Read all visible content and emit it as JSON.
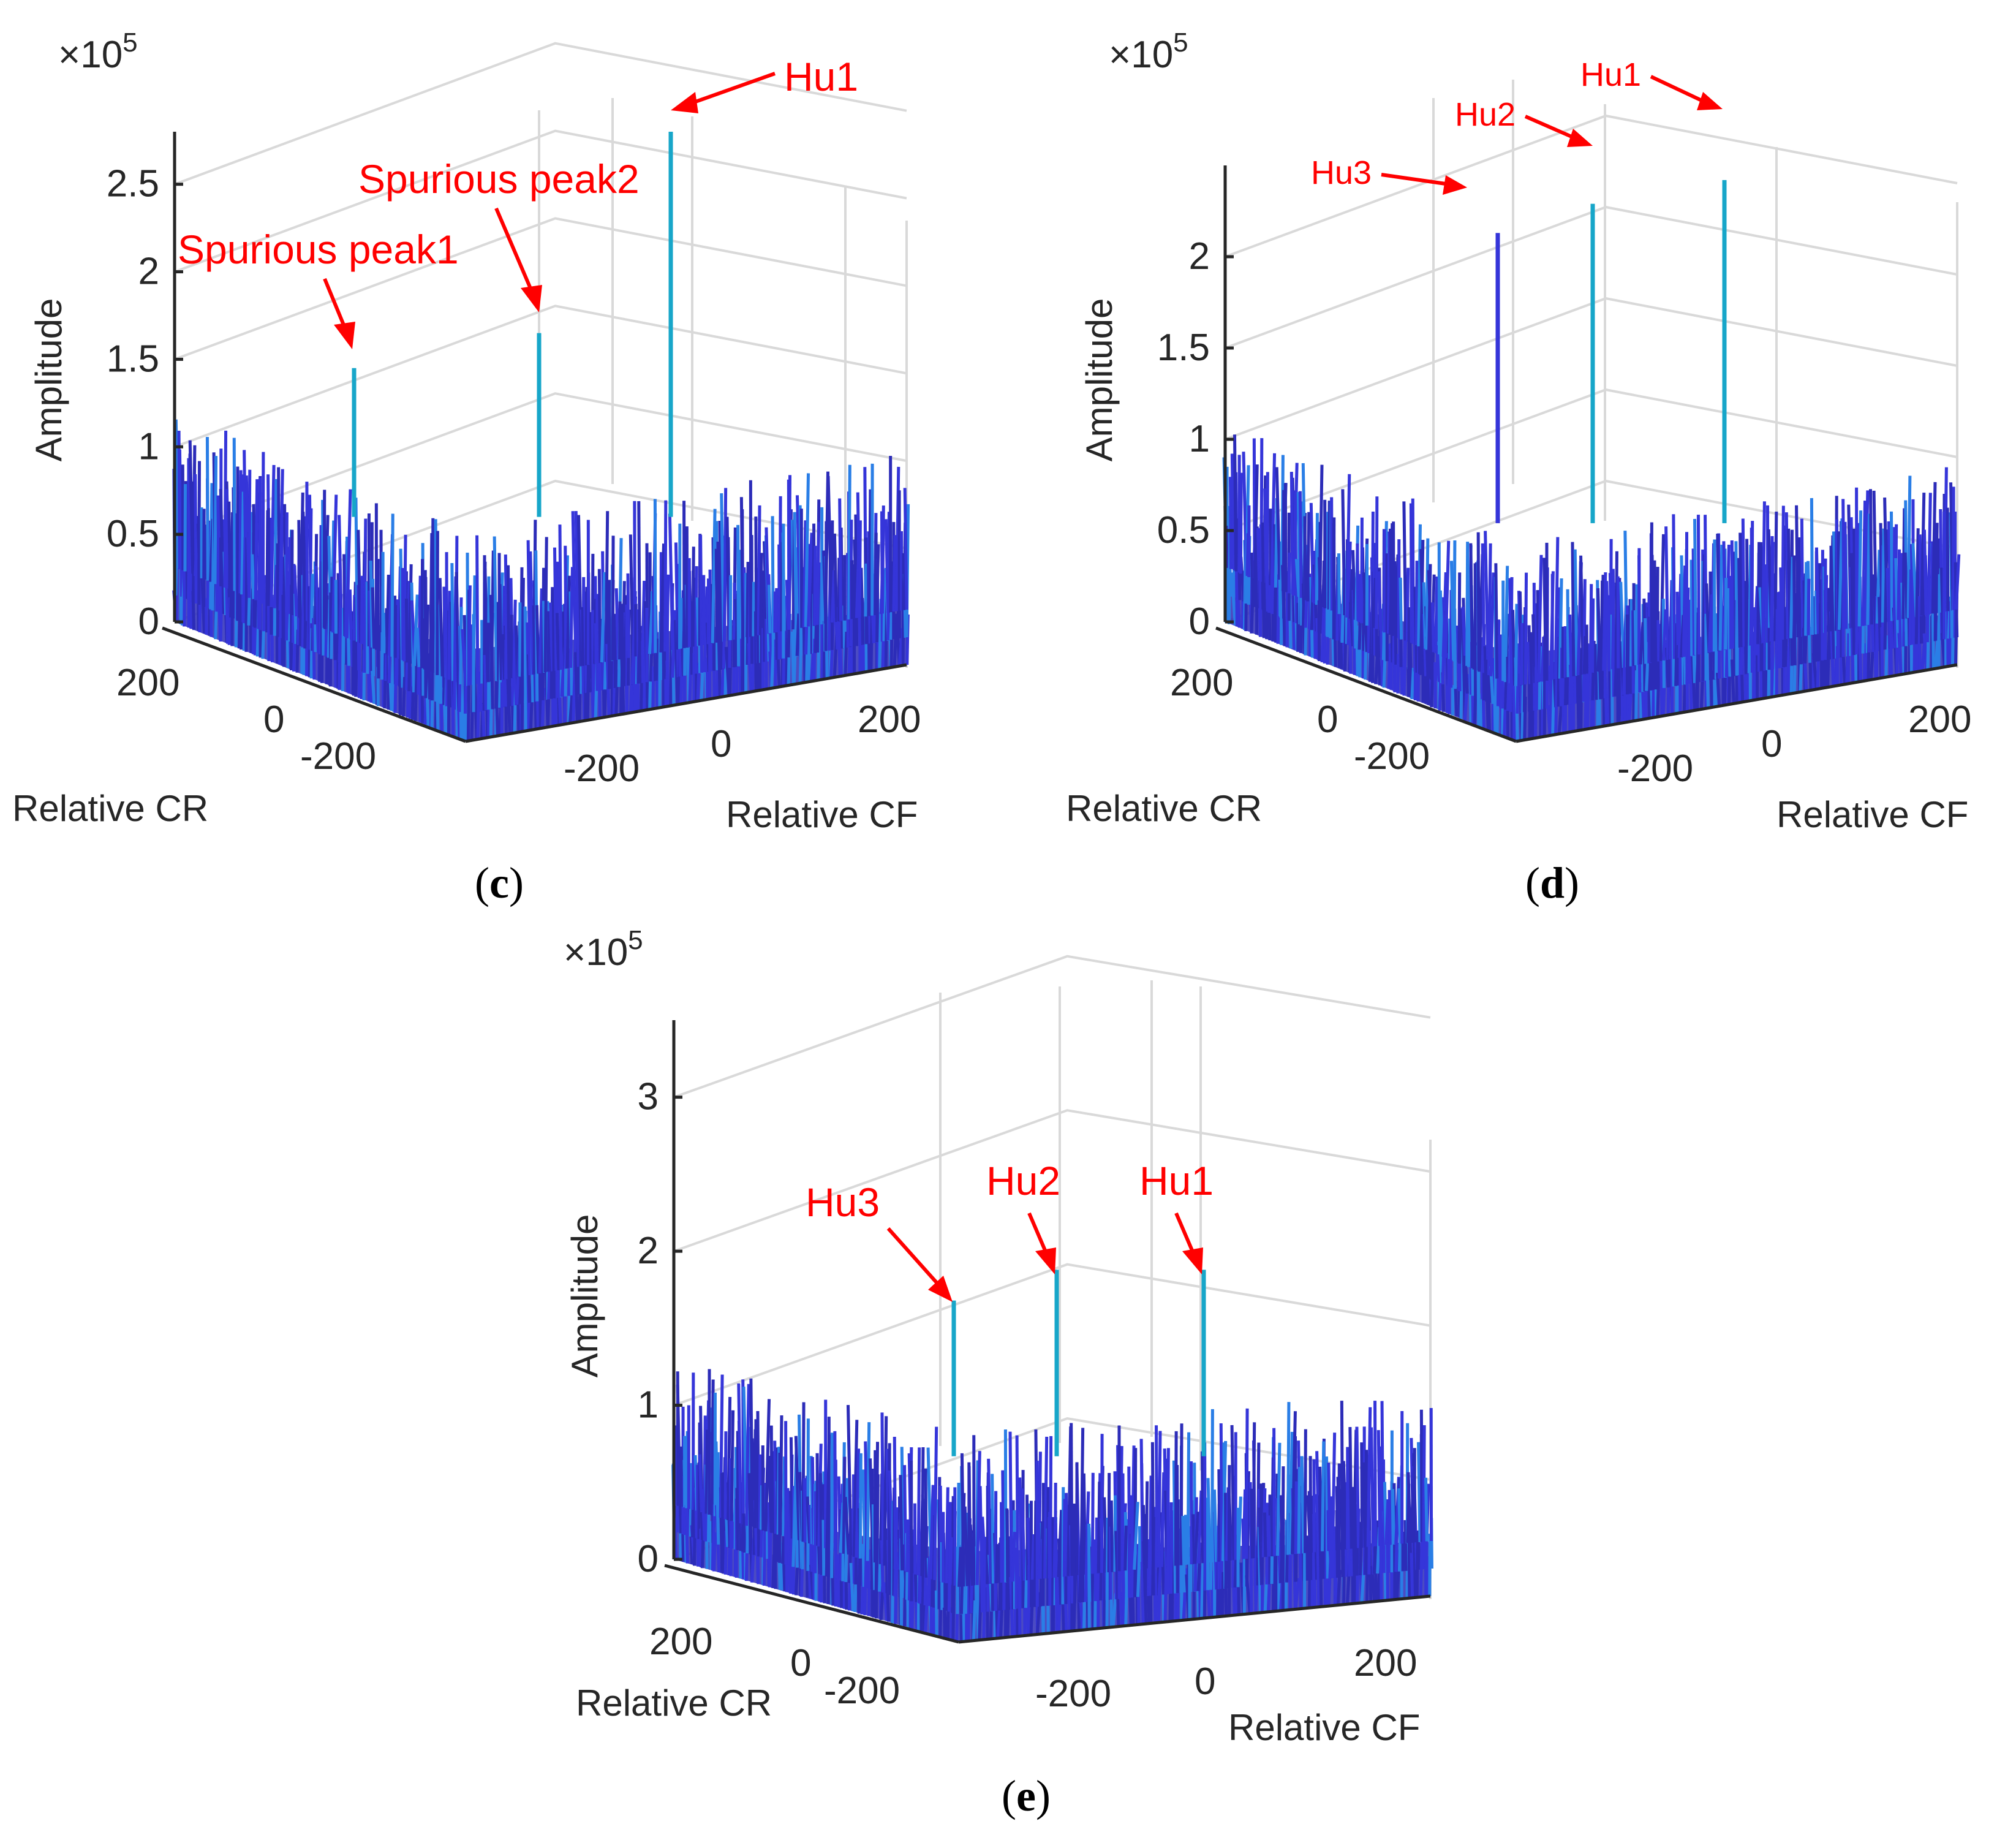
{
  "colors": {
    "noise_dark": "#2c2cb8",
    "noise_mid": "#3535d9",
    "noise_light": "#2a7ee6",
    "peak_cyan": "#17a6c9",
    "annotation": "#ff0000",
    "grid": "#d9d9d9"
  },
  "chart_data": [
    {
      "type": "bar3d",
      "panel": "c",
      "caption_letter": "c",
      "exponent_label": "×10",
      "exponent_power": "5",
      "zlabel": "Amplitude",
      "xlabel": "Relative CR",
      "ylabel": "Relative CF",
      "zlim": [
        0,
        2.8
      ],
      "zticks": [
        "0",
        "0.5",
        "1",
        "1.5",
        "2",
        "2.5"
      ],
      "zticks_values": [
        0,
        0.5,
        1,
        1.5,
        2,
        2.5
      ],
      "cr_ticks": [
        "200",
        "0",
        "-200"
      ],
      "cf_ticks": [
        "-200",
        "0",
        "200"
      ],
      "noise_level": 0.9,
      "peaks": [
        {
          "label": "Hu1",
          "value": 2.8
        },
        {
          "label": "Spurious peak2",
          "value": 1.65
        },
        {
          "label": "Spurious peak1",
          "value": 1.45
        }
      ]
    },
    {
      "type": "bar3d",
      "panel": "d",
      "caption_letter": "d",
      "exponent_label": "×10",
      "exponent_power": "5",
      "zlabel": "Amplitude",
      "xlabel": "Relative CR",
      "ylabel": "Relative CF",
      "zlim": [
        0,
        2.5
      ],
      "zticks": [
        "0",
        "0.5",
        "1",
        "1.5",
        "2"
      ],
      "zticks_values": [
        0,
        0.5,
        1,
        1.5,
        2
      ],
      "cr_ticks": [
        "200",
        "0",
        "-200"
      ],
      "cf_ticks": [
        "-200",
        "0",
        "200"
      ],
      "noise_level": 0.8,
      "peaks": [
        {
          "label": "Hu1",
          "value": 2.42
        },
        {
          "label": "Hu2",
          "value": 2.29
        },
        {
          "label": "Hu3",
          "value": 2.13
        }
      ]
    },
    {
      "type": "bar3d",
      "panel": "e",
      "caption_letter": "e",
      "exponent_label": "×10",
      "exponent_power": "5",
      "zlabel": "Amplitude",
      "xlabel": "Relative CR",
      "ylabel": "Relative CF",
      "zlim": [
        0,
        3.5
      ],
      "zticks": [
        "0",
        "1",
        "2",
        "3"
      ],
      "zticks_values": [
        0,
        1,
        2,
        3
      ],
      "cr_ticks": [
        "200",
        "0",
        "-200"
      ],
      "cf_ticks": [
        "-200",
        "0",
        "200"
      ],
      "noise_level": 1.0,
      "peaks": [
        {
          "label": "Hu1",
          "value": 1.88
        },
        {
          "label": "Hu2",
          "value": 1.88
        },
        {
          "label": "Hu3",
          "value": 1.68
        }
      ]
    }
  ]
}
